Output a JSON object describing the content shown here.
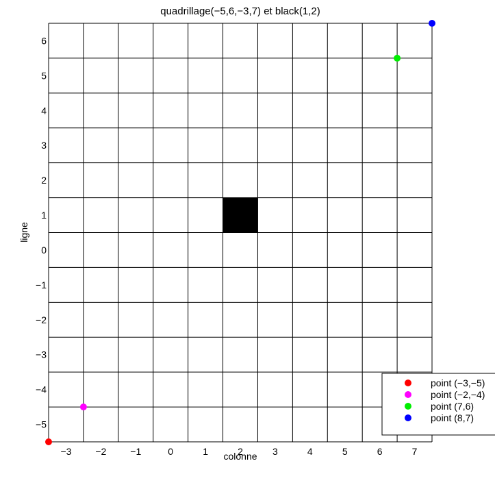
{
  "chart_data": {
    "type": "scatter",
    "title": "quadrillage(−5,6,−3,7) et black(1,2)",
    "xlabel": "colonne",
    "ylabel": "ligne",
    "xlim": [
      -3.5,
      7.5
    ],
    "ylim": [
      -5.5,
      6.5
    ],
    "x_ticks": [
      {
        "value": -3,
        "label": "−3"
      },
      {
        "value": -2,
        "label": "−2"
      },
      {
        "value": -1,
        "label": "−1"
      },
      {
        "value": 0,
        "label": "0"
      },
      {
        "value": 1,
        "label": "1"
      },
      {
        "value": 2,
        "label": "2"
      },
      {
        "value": 3,
        "label": "3"
      },
      {
        "value": 4,
        "label": "4"
      },
      {
        "value": 5,
        "label": "5"
      },
      {
        "value": 6,
        "label": "6"
      },
      {
        "value": 7,
        "label": "7"
      }
    ],
    "y_ticks": [
      {
        "value": 6,
        "label": "6"
      },
      {
        "value": 5,
        "label": "5"
      },
      {
        "value": 4,
        "label": "4"
      },
      {
        "value": 3,
        "label": "3"
      },
      {
        "value": 2,
        "label": "2"
      },
      {
        "value": 1,
        "label": "1"
      },
      {
        "value": 0,
        "label": "0"
      },
      {
        "value": -1,
        "label": "−1"
      },
      {
        "value": -2,
        "label": "−2"
      },
      {
        "value": -3,
        "label": "−3"
      },
      {
        "value": -4,
        "label": "−4"
      },
      {
        "value": -5,
        "label": "−5"
      }
    ],
    "grid": true,
    "black_cell": {
      "x": [
        1.5,
        2.5
      ],
      "y": [
        0.5,
        1.5
      ],
      "color": "#000000"
    },
    "series": [
      {
        "name": "point (−3,−5)",
        "x": -3.5,
        "y": -5.5,
        "color": "#ff0000"
      },
      {
        "name": "point (−2,−4)",
        "x": -2.5,
        "y": -4.5,
        "color": "#ff00ff"
      },
      {
        "name": "point (7,6)",
        "x": 6.5,
        "y": 5.5,
        "color": "#00ee00"
      },
      {
        "name": "point (8,7)",
        "x": 7.5,
        "y": 6.5,
        "color": "#0000ff"
      }
    ],
    "legend_position": "bottom-right"
  }
}
